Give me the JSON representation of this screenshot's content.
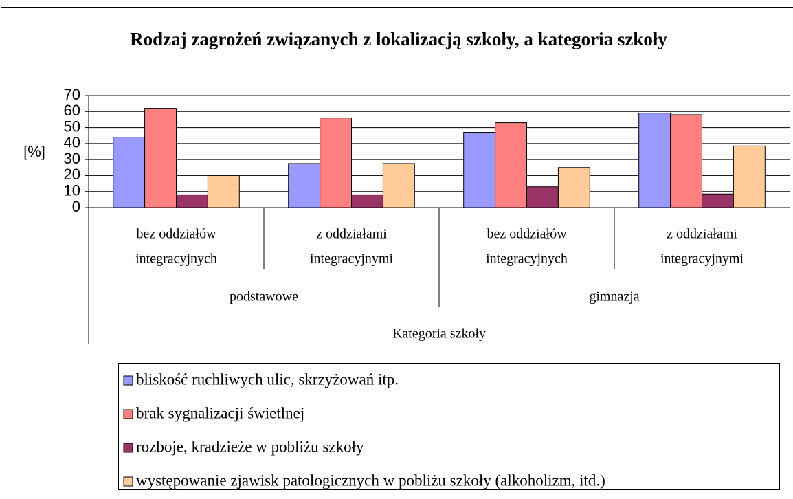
{
  "chart_data": {
    "type": "bar",
    "title": "Rodzaj zagrożeń związanych z lokalizacją szkoły, a kategoria szkoły",
    "y_label": "[%]",
    "x_label": "Kategoria szkoły",
    "categories": [
      [
        "bez oddziałów",
        "integracyjnych"
      ],
      [
        "z oddziałami",
        "integracyjnymi"
      ],
      [
        "bez oddziałów",
        "integracyjnych"
      ],
      [
        "z oddziałami",
        "integracyjnymi"
      ]
    ],
    "groups": [
      "podstawowe",
      "gimnazja"
    ],
    "series": [
      {
        "name": "bliskość ruchliwych ulic, skrzyżowań itp.",
        "color": "#9999ff",
        "values": [
          44,
          27.5,
          47,
          59
        ]
      },
      {
        "name": "brak sygnalizacji świetlnej",
        "color": "#ff8080",
        "values": [
          62,
          56,
          53,
          58
        ]
      },
      {
        "name": "rozboje, kradzieże w pobliżu szkoły",
        "color": "#993366",
        "values": [
          8,
          8,
          13,
          8.5
        ]
      },
      {
        "name": "występowanie zjawisk patologicznych w pobliżu szkoły (alkoholizm, itd.)",
        "color": "#ffcc99",
        "values": [
          20,
          27.5,
          25,
          38.5
        ]
      }
    ],
    "ylim": [
      0,
      70
    ],
    "yticks": [
      0,
      10,
      20,
      30,
      40,
      50,
      60,
      70
    ],
    "grid": true
  }
}
